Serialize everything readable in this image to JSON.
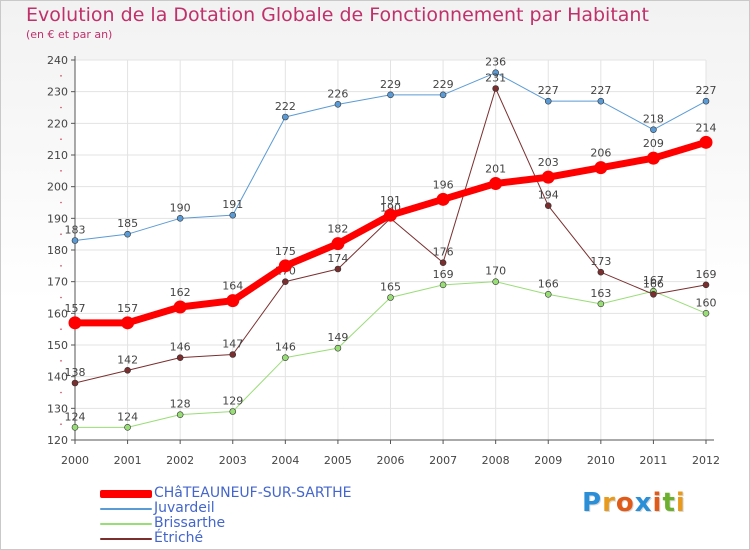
{
  "logo": {
    "text": "Proxiti",
    "letters": [
      "P",
      "r",
      "o",
      "x",
      "i",
      "t",
      "i"
    ],
    "colors": [
      "#2b8fd8",
      "#e89a1d",
      "#e05a1a",
      "#2b8fd8",
      "#e05a1a",
      "#6cb02e",
      "#e89a1d"
    ]
  },
  "chart_data": {
    "type": "line",
    "title": "Evolution de la Dotation Globale de Fonctionnement par Habitant",
    "subtitle": "(en € et par an)",
    "x": [
      2000,
      2001,
      2002,
      2003,
      2004,
      2005,
      2006,
      2007,
      2008,
      2009,
      2010,
      2011,
      2012
    ],
    "ylim": [
      120,
      240
    ],
    "yticks": [
      120,
      130,
      140,
      150,
      160,
      170,
      180,
      190,
      200,
      210,
      220,
      230,
      240
    ],
    "grid": true,
    "legend_position": "bottom-left",
    "series": [
      {
        "name": "Juvardeil",
        "color": "#5b9bd5",
        "width": 1,
        "values": [
          183,
          185,
          190,
          191,
          222,
          226,
          229,
          229,
          236,
          227,
          227,
          218,
          227
        ]
      },
      {
        "name": "Brissarthe",
        "color": "#99dd77",
        "width": 1,
        "values": [
          124,
          124,
          128,
          129,
          146,
          149,
          165,
          169,
          170,
          166,
          163,
          167,
          160
        ]
      },
      {
        "name": "Étriché",
        "color": "#7a2e2e",
        "width": 1,
        "values": [
          138,
          142,
          146,
          147,
          170,
          174,
          190,
          176,
          231,
          194,
          173,
          166,
          169
        ]
      },
      {
        "name": "CHâTEAUNEUF-SUR-SARTHE",
        "color": "#ff0000",
        "width": 7,
        "values": [
          157,
          157,
          162,
          164,
          175,
          182,
          191,
          196,
          201,
          203,
          206,
          209,
          214
        ]
      }
    ],
    "legend_order": [
      "CHâTEAUNEUF-SUR-SARTHE",
      "Juvardeil",
      "Brissarthe",
      "Étriché"
    ]
  }
}
